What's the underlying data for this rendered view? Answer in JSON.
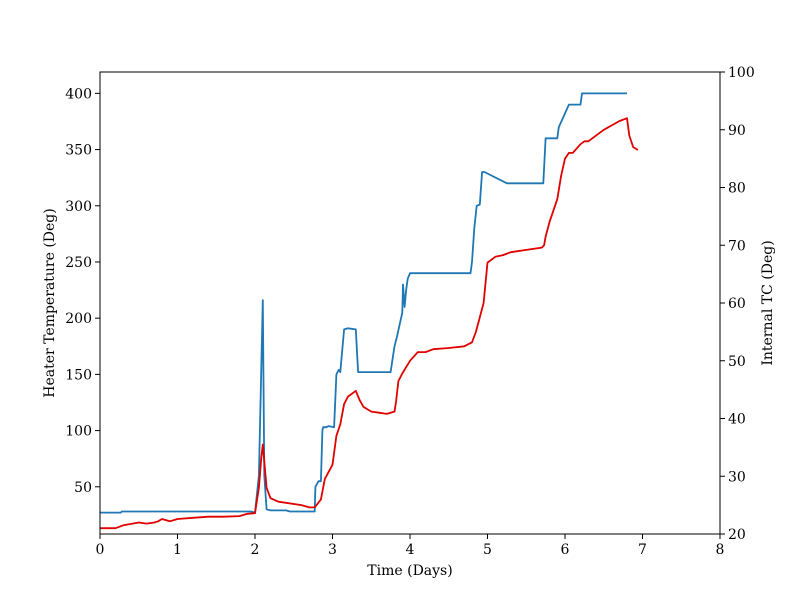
{
  "chart_data": {
    "type": "line",
    "xlabel": "Time (Days)",
    "ylabel_left": "Heater Temperature (Deg)",
    "ylabel_right": "Internal TC (Deg)",
    "xlim": [
      0,
      8
    ],
    "ylim_left": [
      8,
      419
    ],
    "ylim_right": [
      20,
      100
    ],
    "x_ticks": [
      "0",
      "1",
      "2",
      "3",
      "4",
      "5",
      "6",
      "7",
      "8"
    ],
    "y_left_ticks": [
      "50",
      "100",
      "150",
      "200",
      "250",
      "300",
      "350",
      "400"
    ],
    "y_right_ticks": [
      "20",
      "30",
      "40",
      "50",
      "60",
      "70",
      "80",
      "90",
      "100"
    ],
    "grid": false,
    "legend": "none",
    "series": [
      {
        "axis": "left",
        "color": "#1f77b4",
        "x": [
          0.0,
          0.27,
          0.28,
          1.95,
          2.0,
          2.05,
          2.1,
          2.12,
          2.15,
          2.2,
          2.4,
          2.45,
          2.6,
          2.77,
          2.78,
          2.82,
          2.85,
          2.87,
          2.88,
          2.92,
          2.95,
          3.02,
          3.05,
          3.08,
          3.1,
          3.15,
          3.2,
          3.3,
          3.33,
          3.75,
          3.8,
          3.83,
          3.9,
          3.91,
          3.93,
          3.95,
          3.97,
          4.0,
          4.78,
          4.8,
          4.83,
          4.86,
          4.9,
          4.93,
          4.96,
          5.25,
          5.72,
          5.75,
          5.9,
          5.92,
          6.05,
          6.2,
          6.22,
          6.8
        ],
        "y": [
          27,
          27,
          28,
          28,
          27,
          60,
          216,
          60,
          30,
          29,
          29,
          28,
          28,
          28,
          50,
          55,
          55,
          100,
          103,
          103,
          104,
          103,
          150,
          154,
          152,
          190,
          191,
          190,
          152,
          152,
          175,
          183,
          205,
          230,
          210,
          225,
          235,
          240,
          240,
          250,
          280,
          300,
          301,
          330,
          330,
          320,
          320,
          360,
          360,
          370,
          390,
          390,
          400,
          400
        ]
      },
      {
        "axis": "right",
        "color": "#e00000",
        "x": [
          0.0,
          0.2,
          0.3,
          0.5,
          0.6,
          0.7,
          0.75,
          0.8,
          0.9,
          1.0,
          1.2,
          1.4,
          1.6,
          1.8,
          1.9,
          2.0,
          2.05,
          2.08,
          2.1,
          2.15,
          2.2,
          2.3,
          2.6,
          2.7,
          2.77,
          2.85,
          2.9,
          3.0,
          3.05,
          3.1,
          3.15,
          3.2,
          3.3,
          3.35,
          3.4,
          3.5,
          3.6,
          3.7,
          3.8,
          3.82,
          3.85,
          3.9,
          4.0,
          4.1,
          4.2,
          4.3,
          4.5,
          4.7,
          4.8,
          4.85,
          4.9,
          4.95,
          5.0,
          5.1,
          5.2,
          5.3,
          5.5,
          5.7,
          5.73,
          5.75,
          5.8,
          5.9,
          5.95,
          6.0,
          6.05,
          6.1,
          6.2,
          6.25,
          6.3,
          6.5,
          6.7,
          6.8,
          6.83,
          6.88,
          6.94
        ],
        "y": [
          21,
          21,
          21.5,
          22,
          21.8,
          22,
          22.2,
          22.6,
          22.2,
          22.6,
          22.8,
          23,
          23,
          23.1,
          23.5,
          23.6,
          28,
          33,
          35.5,
          28,
          26.2,
          25.6,
          25,
          24.6,
          24.6,
          26,
          29.5,
          32,
          37,
          39,
          42.5,
          43.8,
          44.8,
          43.2,
          42,
          41.2,
          41,
          40.8,
          41.2,
          43,
          46.5,
          47.8,
          50,
          51.5,
          51.5,
          52,
          52.2,
          52.5,
          53.2,
          55,
          57.5,
          60,
          67,
          68,
          68.3,
          68.8,
          69.2,
          69.6,
          70,
          71.5,
          74,
          78,
          82,
          85,
          86,
          86,
          87.5,
          88,
          88,
          90,
          91.5,
          92,
          89,
          87,
          86.5
        ]
      }
    ]
  }
}
